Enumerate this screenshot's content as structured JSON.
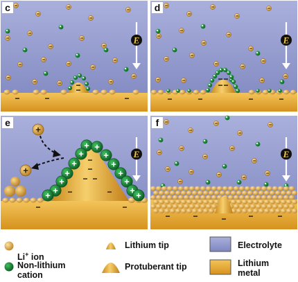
{
  "panels": [
    {
      "letter": "c",
      "field_label": "E"
    },
    {
      "letter": "d",
      "field_label": "E"
    },
    {
      "letter": "e",
      "field_label": "E"
    },
    {
      "letter": "f",
      "field_label": "E"
    }
  ],
  "legend": {
    "li_ion": {
      "prefix": "Li",
      "superscript": "+",
      "suffix": " ion"
    },
    "non_lithium": "Non-lithium\ncation",
    "lithium_tip": "Lithium tip",
    "protuberant_tip": "Protuberant tip",
    "electrolyte": "Electrolyte",
    "lithium_metal": "Lithium\nmetal"
  },
  "colors": {
    "electrolyte_top": "#aab0dc",
    "electrolyte_bottom": "#8088c0",
    "lithium": "#e4a93a",
    "li_ion": "#e6b04a",
    "non_lithium_cation": "#1f8c3a"
  },
  "symbols": {
    "charge_positive": "+",
    "charge_negative": "−"
  }
}
